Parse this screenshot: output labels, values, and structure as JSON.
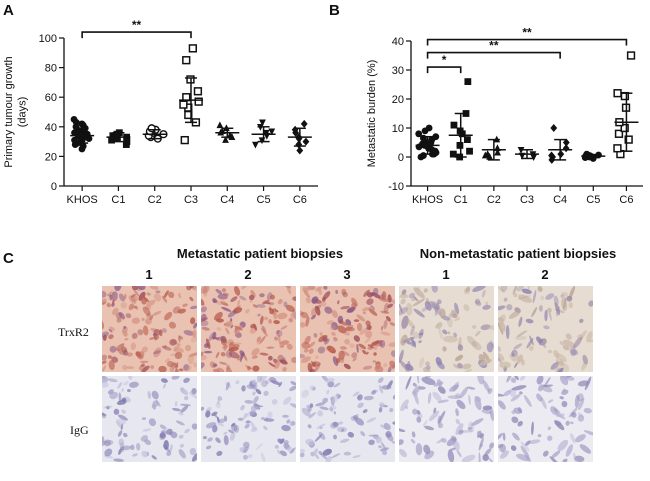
{
  "panels": {
    "A": "A",
    "B": "B",
    "C": "C"
  },
  "chart_data": [
    {
      "type": "scatter",
      "title": "",
      "xlabel": "",
      "ylabel": "Primary tumour growth (days)",
      "ylim": [
        0,
        100
      ],
      "yticks": [
        0,
        20,
        40,
        60,
        80,
        100
      ],
      "categories": [
        "KHOS",
        "C1",
        "C2",
        "C3",
        "C4",
        "C5",
        "C6"
      ],
      "markers": [
        "circle",
        "square",
        "circle-open",
        "square-open",
        "triangle",
        "triangle-down",
        "diamond"
      ],
      "points": [
        [
          25,
          27,
          28,
          29,
          30,
          31,
          31,
          32,
          33,
          33,
          34,
          35,
          35,
          36,
          37,
          38,
          39,
          40,
          41,
          42,
          43,
          45
        ],
        [
          28,
          30,
          31,
          32,
          33,
          34,
          35,
          36
        ],
        [
          32,
          33,
          34,
          35,
          36,
          37,
          38,
          39
        ],
        [
          31,
          43,
          48,
          53,
          55,
          57,
          60,
          64,
          72,
          85,
          93
        ],
        [
          31,
          33,
          34,
          36,
          37,
          39,
          41
        ],
        [
          28,
          31,
          34,
          36,
          37,
          40,
          43
        ],
        [
          24,
          28,
          30,
          32,
          33,
          36,
          38,
          42
        ]
      ],
      "mean": [
        34,
        33,
        35,
        58,
        36,
        35,
        33
      ],
      "sd": [
        5,
        3,
        3,
        15,
        3,
        5,
        6
      ],
      "significance": [
        {
          "from": "KHOS",
          "to": "C3",
          "label": "**",
          "y": 104
        }
      ]
    },
    {
      "type": "scatter",
      "title": "",
      "xlabel": "",
      "ylabel": "Metastatic burden (%)",
      "ylim": [
        -10,
        40
      ],
      "yticks": [
        -10,
        0,
        10,
        20,
        30,
        40
      ],
      "categories": [
        "KHOS",
        "C1",
        "C2",
        "C3",
        "C4",
        "C5",
        "C6"
      ],
      "markers": [
        "circle",
        "square",
        "triangle",
        "triangle-down",
        "diamond",
        "circle",
        "square-open"
      ],
      "points": [
        [
          0,
          0.5,
          1,
          1,
          1.5,
          2,
          2,
          2.5,
          3,
          3,
          3.5,
          4,
          4,
          4.5,
          5,
          5,
          6,
          6.5,
          7,
          8,
          9,
          10
        ],
        [
          0,
          1,
          2,
          4,
          6,
          8,
          9,
          11,
          15,
          26
        ],
        [
          0,
          0.5,
          1,
          1.5,
          3,
          6
        ],
        [
          0,
          0.5,
          1,
          2.5
        ],
        [
          -1,
          0,
          0.5,
          1,
          3,
          5,
          10
        ],
        [
          -0.5,
          -0.2,
          0,
          0,
          0.2,
          0.3,
          0.5,
          0.5,
          0.7,
          1
        ],
        [
          1,
          3,
          6,
          8,
          10,
          12,
          17,
          21,
          22,
          35
        ]
      ],
      "mean": [
        4,
        7.5,
        2.5,
        1,
        2.5,
        0.3,
        12
      ],
      "sd": [
        3,
        7.5,
        3.5,
        1.5,
        3.5,
        0.5,
        10
      ],
      "significance": [
        {
          "from": "KHOS",
          "to": "C1",
          "label": "*",
          "y": 31
        },
        {
          "from": "KHOS",
          "to": "C4",
          "label": "**",
          "y": 36
        },
        {
          "from": "KHOS",
          "to": "C6",
          "label": "**",
          "y": 40.5
        }
      ]
    }
  ],
  "panel_c": {
    "metastatic_label": "Metastatic patient biopsies",
    "nonmetastatic_label": "Non-metastatic patient biopsies",
    "metastatic_cols": [
      "1",
      "2",
      "3"
    ],
    "nonmetastatic_cols": [
      "1",
      "2"
    ],
    "row_labels": [
      "TrxR2",
      "IgG"
    ]
  }
}
